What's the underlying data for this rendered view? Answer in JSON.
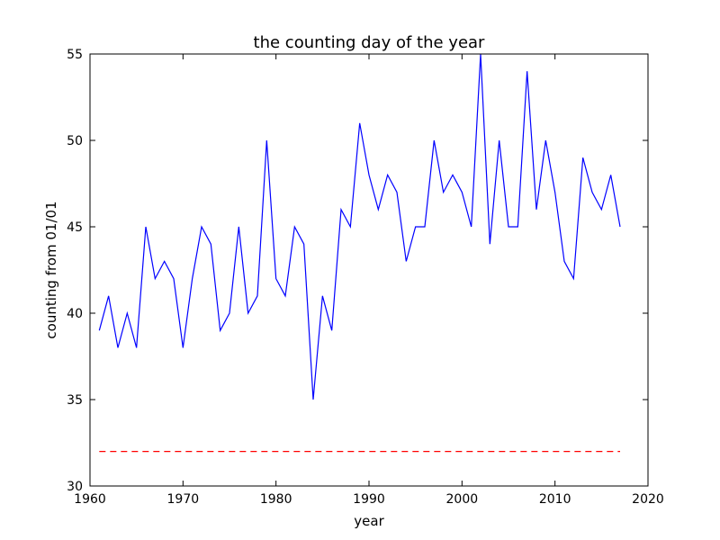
{
  "chart_data": {
    "type": "line",
    "title": "the counting day of the year",
    "xlabel": "year",
    "ylabel": "counting from 01/01",
    "xlim": [
      1960,
      2020
    ],
    "ylim": [
      30,
      55
    ],
    "xticks": [
      1960,
      1970,
      1980,
      1990,
      2000,
      2010,
      2020
    ],
    "yticks": [
      30,
      35,
      40,
      45,
      50,
      55
    ],
    "grid": false,
    "colors": {
      "series": "#0000ff",
      "reference": "#ff0000"
    },
    "series": [
      {
        "x": [
          1961,
          1962,
          1963,
          1964,
          1965,
          1966,
          1967,
          1968,
          1969,
          1970,
          1971,
          1972,
          1973,
          1974,
          1975,
          1976,
          1977,
          1978,
          1979,
          1980,
          1981,
          1982,
          1983,
          1984,
          1985,
          1986,
          1987,
          1988,
          1989,
          1990,
          1991,
          1992,
          1993,
          1994,
          1995,
          1996,
          1997,
          1998,
          1999,
          2000,
          2001,
          2002,
          2003,
          2004,
          2005,
          2006,
          2007,
          2008,
          2009,
          2010,
          2011,
          2012,
          2013,
          2014,
          2015,
          2016,
          2017
        ],
        "values": [
          39,
          41,
          38,
          40,
          38,
          45,
          42,
          43,
          42,
          38,
          42,
          45,
          44,
          39,
          40,
          45,
          40,
          41,
          50,
          42,
          41,
          45,
          44,
          35,
          41,
          39,
          46,
          45,
          51,
          48,
          46,
          48,
          47,
          43,
          45,
          45,
          50,
          47,
          48,
          47,
          45,
          55,
          44,
          50,
          45,
          45,
          54,
          46,
          50,
          47,
          43,
          42,
          49,
          47,
          46,
          48,
          45
        ]
      }
    ],
    "reference_line": {
      "y": 32,
      "x_start": 1961,
      "x_end": 2017,
      "style": "dashed"
    }
  }
}
